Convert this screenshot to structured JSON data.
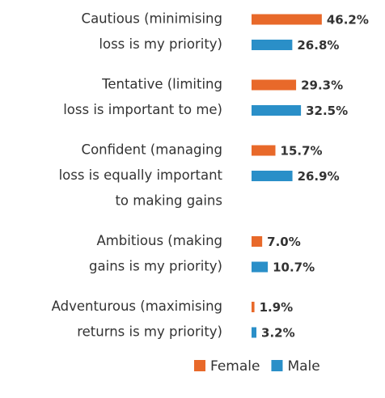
{
  "chart_data": {
    "type": "hbar",
    "categories": [
      [
        "Cautious (minimising",
        "loss is my priority)"
      ],
      [
        "Tentative (limiting",
        "loss is important to me)"
      ],
      [
        "Confident (managing",
        "loss is equally important",
        "to making gains"
      ],
      [
        "Ambitious (making",
        "gains is my priority)"
      ],
      [
        "Adventurous (maximising",
        "returns is my priority)"
      ]
    ],
    "series": [
      {
        "name": "Female",
        "color": "#e8692a",
        "values": [
          46.2,
          29.3,
          15.7,
          7.0,
          1.9
        ],
        "value_labels": [
          "46.2%",
          "29.3%",
          "15.7%",
          "7.0%",
          "1.9%"
        ]
      },
      {
        "name": "Male",
        "color": "#2a8fc8",
        "values": [
          26.8,
          32.5,
          26.9,
          10.7,
          3.2
        ],
        "value_labels": [
          "26.8%",
          "32.5%",
          "26.9%",
          "10.7%",
          "3.2%"
        ]
      }
    ],
    "legend": "bottom"
  }
}
